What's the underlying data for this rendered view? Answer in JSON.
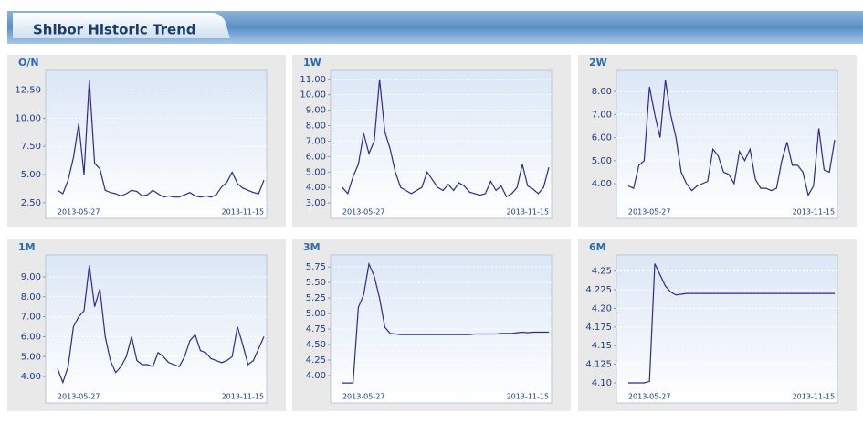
{
  "header": {
    "title": "Shibor Historic Trend"
  },
  "chart_data": [
    {
      "type": "line",
      "title": "O/N",
      "color": "#2a2a96",
      "grid": true,
      "categories": [
        null,
        null,
        null,
        null,
        "2013-05-27",
        null,
        null,
        null,
        null,
        null,
        null,
        null,
        null,
        null,
        null,
        null,
        null,
        null,
        null,
        null,
        null,
        null,
        null,
        null,
        null,
        null,
        null,
        null,
        null,
        null,
        null,
        null,
        null,
        null,
        null,
        "2013-11-15",
        null,
        null,
        null,
        null
      ],
      "values": [
        3.6,
        3.3,
        4.5,
        6.5,
        9.5,
        5.0,
        13.4,
        6.0,
        5.5,
        3.6,
        3.4,
        3.3,
        3.1,
        3.3,
        3.6,
        3.5,
        3.1,
        3.2,
        3.6,
        3.3,
        3.0,
        3.1,
        3.0,
        3.0,
        3.2,
        3.4,
        3.1,
        3.0,
        3.1,
        3.0,
        3.2,
        3.9,
        4.3,
        5.2,
        4.2,
        3.8,
        3.6,
        3.4,
        3.3,
        4.5
      ],
      "ylim": [
        2.0,
        14.0
      ],
      "yticks": [
        {
          "value": 2.5,
          "label": "2.50"
        },
        {
          "value": 5,
          "label": "5.00"
        },
        {
          "value": 7.5,
          "label": "7.50"
        },
        {
          "value": 10,
          "label": "10.00"
        },
        {
          "value": 12.5,
          "label": "12.50"
        }
      ]
    },
    {
      "type": "line",
      "title": "1W",
      "color": "#2a2a96",
      "grid": true,
      "categories": [
        null,
        null,
        null,
        null,
        "2013-05-27",
        null,
        null,
        null,
        null,
        null,
        null,
        null,
        null,
        null,
        null,
        null,
        null,
        null,
        null,
        null,
        null,
        null,
        null,
        null,
        null,
        null,
        null,
        null,
        null,
        null,
        null,
        null,
        null,
        null,
        null,
        "2013-11-15",
        null,
        null,
        null,
        null
      ],
      "values": [
        4.0,
        3.6,
        4.7,
        5.5,
        7.5,
        6.2,
        7.0,
        11.0,
        7.6,
        6.5,
        5.0,
        4.0,
        3.8,
        3.6,
        3.8,
        4.0,
        5.0,
        4.5,
        4.0,
        3.8,
        4.2,
        3.8,
        4.3,
        4.1,
        3.7,
        3.6,
        3.5,
        3.6,
        4.4,
        3.8,
        4.1,
        3.4,
        3.6,
        4.0,
        5.5,
        4.1,
        3.9,
        3.6,
        4.0,
        5.3
      ],
      "ylim": [
        2.65,
        11.4
      ],
      "yticks": [
        {
          "value": 3,
          "label": "3.00"
        },
        {
          "value": 4,
          "label": "4.00"
        },
        {
          "value": 5,
          "label": "5.00"
        },
        {
          "value": 6,
          "label": "6.00"
        },
        {
          "value": 7,
          "label": "7.00"
        },
        {
          "value": 8,
          "label": "8.00"
        },
        {
          "value": 9,
          "label": "9.00"
        },
        {
          "value": 10,
          "label": "10.00"
        },
        {
          "value": 11,
          "label": "11.00"
        }
      ]
    },
    {
      "type": "line",
      "title": "2W",
      "color": "#2a2a96",
      "grid": true,
      "categories": [
        null,
        null,
        null,
        null,
        "2013-05-27",
        null,
        null,
        null,
        null,
        null,
        null,
        null,
        null,
        null,
        null,
        null,
        null,
        null,
        null,
        null,
        null,
        null,
        null,
        null,
        null,
        null,
        null,
        null,
        null,
        null,
        null,
        null,
        null,
        null,
        null,
        "2013-11-15",
        null,
        null,
        null,
        null
      ],
      "values": [
        3.9,
        3.8,
        4.8,
        5.0,
        8.2,
        7.0,
        6.0,
        8.5,
        7.0,
        6.0,
        4.5,
        4.0,
        3.7,
        3.9,
        4.0,
        4.1,
        5.5,
        5.2,
        4.5,
        4.4,
        4.0,
        5.4,
        5.0,
        5.5,
        4.2,
        3.8,
        3.8,
        3.7,
        3.8,
        5.0,
        5.8,
        4.8,
        4.8,
        4.5,
        3.5,
        3.9,
        6.4,
        4.6,
        4.5,
        5.9
      ],
      "ylim": [
        2.93,
        8.8
      ],
      "yticks": [
        {
          "value": 4,
          "label": "4.00"
        },
        {
          "value": 5,
          "label": "5.00"
        },
        {
          "value": 6,
          "label": "6.00"
        },
        {
          "value": 7,
          "label": "7.00"
        },
        {
          "value": 8,
          "label": "8.00"
        }
      ]
    },
    {
      "type": "line",
      "title": "1M",
      "color": "#2a2a96",
      "grid": true,
      "categories": [
        null,
        null,
        null,
        null,
        "2013-05-27",
        null,
        null,
        null,
        null,
        null,
        null,
        null,
        null,
        null,
        null,
        null,
        null,
        null,
        null,
        null,
        null,
        null,
        null,
        null,
        null,
        null,
        null,
        null,
        null,
        null,
        null,
        null,
        null,
        null,
        null,
        "2013-11-15",
        null,
        null,
        null,
        null
      ],
      "values": [
        4.4,
        3.7,
        4.5,
        6.5,
        7.0,
        7.3,
        9.6,
        7.5,
        8.4,
        6.0,
        4.8,
        4.2,
        4.5,
        5.0,
        6.0,
        4.8,
        4.6,
        4.6,
        4.5,
        5.2,
        5.0,
        4.7,
        4.6,
        4.5,
        5.0,
        5.8,
        6.1,
        5.3,
        5.2,
        4.9,
        4.8,
        4.7,
        4.8,
        5.0,
        6.5,
        5.6,
        4.6,
        4.8,
        5.4,
        6.0
      ],
      "ylim": [
        3.18,
        9.96
      ],
      "yticks": [
        {
          "value": 4,
          "label": "4.00"
        },
        {
          "value": 5,
          "label": "5.00"
        },
        {
          "value": 6,
          "label": "6.00"
        },
        {
          "value": 7,
          "label": "7.00"
        },
        {
          "value": 8,
          "label": "8.00"
        },
        {
          "value": 9,
          "label": "9.00"
        }
      ]
    },
    {
      "type": "line",
      "title": "3M",
      "color": "#2a2a96",
      "grid": true,
      "categories": [
        null,
        null,
        null,
        null,
        "2013-05-27",
        null,
        null,
        null,
        null,
        null,
        null,
        null,
        null,
        null,
        null,
        null,
        null,
        null,
        null,
        null,
        null,
        null,
        null,
        null,
        null,
        null,
        null,
        null,
        null,
        null,
        null,
        null,
        null,
        null,
        null,
        "2013-11-15",
        null,
        null,
        null,
        null
      ],
      "values": [
        3.88,
        3.88,
        3.88,
        5.1,
        5.3,
        5.8,
        5.6,
        5.25,
        4.78,
        4.68,
        4.67,
        4.66,
        4.66,
        4.66,
        4.66,
        4.66,
        4.66,
        4.66,
        4.66,
        4.66,
        4.66,
        4.66,
        4.66,
        4.66,
        4.66,
        4.67,
        4.67,
        4.67,
        4.67,
        4.67,
        4.68,
        4.68,
        4.68,
        4.69,
        4.7,
        4.69,
        4.7,
        4.7,
        4.7,
        4.7
      ],
      "ylim": [
        3.72,
        5.9
      ],
      "yticks": [
        {
          "value": 4,
          "label": "4.00"
        },
        4.25,
        {
          "value": 4.5,
          "label": "4.50"
        },
        4.75,
        {
          "value": 5,
          "label": "5.00"
        },
        5.25,
        {
          "value": 5.5,
          "label": "5.50"
        },
        5.75
      ]
    },
    {
      "type": "line",
      "title": "6M",
      "color": "#2a2a96",
      "grid": true,
      "categories": [
        null,
        null,
        null,
        null,
        "2013-05-27",
        null,
        null,
        null,
        null,
        null,
        null,
        null,
        null,
        null,
        null,
        null,
        null,
        null,
        null,
        null,
        null,
        null,
        null,
        null,
        null,
        null,
        null,
        null,
        null,
        null,
        null,
        null,
        null,
        null,
        null,
        "2013-11-15",
        null,
        null,
        null,
        null
      ],
      "values": [
        4.1,
        4.1,
        4.1,
        4.1,
        4.102,
        4.26,
        4.245,
        4.23,
        4.222,
        4.218,
        4.219,
        4.22,
        4.22,
        4.22,
        4.22,
        4.22,
        4.22,
        4.22,
        4.22,
        4.22,
        4.22,
        4.22,
        4.22,
        4.22,
        4.22,
        4.22,
        4.22,
        4.22,
        4.22,
        4.22,
        4.22,
        4.22,
        4.22,
        4.22,
        4.22,
        4.22,
        4.22,
        4.22,
        4.22,
        4.22
      ],
      "ylim": [
        4.0865,
        4.268
      ],
      "yticks": [
        {
          "value": 4.1,
          "label": "4.10"
        },
        4.125,
        {
          "value": 4.15,
          "label": "4.15"
        },
        4.175,
        {
          "value": 4.2,
          "label": "4.20"
        },
        4.225,
        {
          "value": 4.25,
          "label": "4.25"
        }
      ]
    }
  ]
}
